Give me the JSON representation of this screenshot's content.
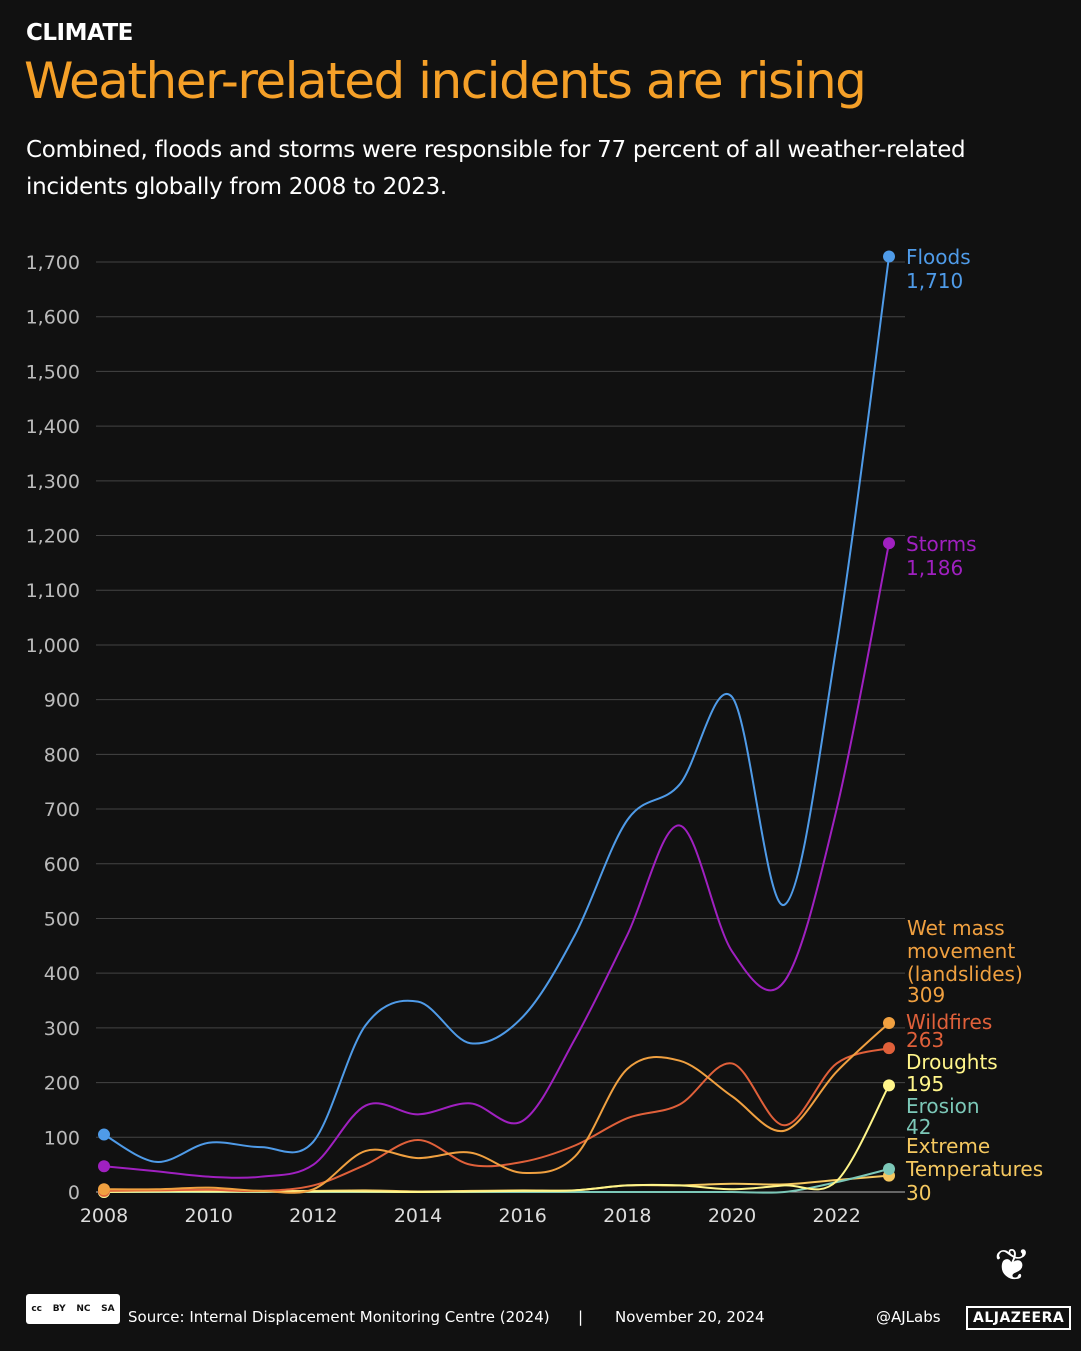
{
  "header": {
    "kicker": "CLIMATE",
    "title": "Weather-related incidents are rising",
    "subtitle": "Combined, floods and storms were responsible for 77 percent of all weather-related incidents globally from 2008 to 2023."
  },
  "chart_data": {
    "type": "line",
    "x": [
      2008,
      2009,
      2010,
      2011,
      2012,
      2013,
      2014,
      2015,
      2016,
      2017,
      2018,
      2019,
      2020,
      2021,
      2022,
      2023
    ],
    "xticks": [
      "2008",
      "2010",
      "2012",
      "2014",
      "2016",
      "2018",
      "2020",
      "2022"
    ],
    "yticks": [
      "0",
      "100",
      "200",
      "300",
      "400",
      "500",
      "600",
      "700",
      "800",
      "900",
      "1,000",
      "1,100",
      "1,200",
      "1,300",
      "1,400",
      "1,500",
      "1,600",
      "1,700"
    ],
    "ylim": [
      0,
      1700
    ],
    "grid": true,
    "series": [
      {
        "name": "Floods",
        "end_label": "1,710",
        "color": "#4f9be8",
        "values": [
          105,
          55,
          90,
          82,
          92,
          305,
          348,
          272,
          320,
          470,
          680,
          745,
          905,
          525,
          1000,
          1710
        ]
      },
      {
        "name": "Storms",
        "end_label": "1,186",
        "color": "#a020c0",
        "values": [
          47,
          38,
          28,
          28,
          50,
          158,
          142,
          162,
          130,
          280,
          470,
          670,
          440,
          385,
          700,
          1186
        ]
      },
      {
        "name": "Wet mass movement (landslides)",
        "end_label": "309",
        "color": "#f0a040",
        "values": [
          5,
          5,
          8,
          2,
          5,
          75,
          62,
          72,
          35,
          65,
          225,
          240,
          175,
          112,
          220,
          309
        ]
      },
      {
        "name": "Wildfires",
        "end_label": "263",
        "color": "#e0603a",
        "values": [
          2,
          3,
          4,
          2,
          12,
          50,
          95,
          50,
          55,
          85,
          135,
          160,
          235,
          122,
          235,
          263
        ]
      },
      {
        "name": "Droughts",
        "end_label": "195",
        "color": "#fff58a",
        "values": [
          0,
          1,
          1,
          1,
          1,
          1,
          0,
          1,
          2,
          3,
          12,
          12,
          5,
          12,
          20,
          195
        ]
      },
      {
        "name": "Erosion",
        "end_label": "42",
        "color": "#7cc8b8",
        "values": [
          0,
          0,
          0,
          0,
          0,
          0,
          0,
          0,
          0,
          0,
          0,
          0,
          0,
          0,
          18,
          42
        ]
      },
      {
        "name": "Extreme Temperatures",
        "end_label": "30",
        "color": "#f5c860",
        "values": [
          2,
          2,
          2,
          2,
          2,
          3,
          1,
          2,
          3,
          3,
          12,
          12,
          15,
          14,
          22,
          30
        ]
      }
    ]
  },
  "footer": {
    "license": [
      "cc",
      "BY",
      "NC",
      "SA"
    ],
    "source": "Source:  Internal Displacement Monitoring Centre (2024)",
    "separator": "|",
    "date": "November 20, 2024",
    "handle": "@AJLabs",
    "brand": "ALJAZEERA"
  }
}
